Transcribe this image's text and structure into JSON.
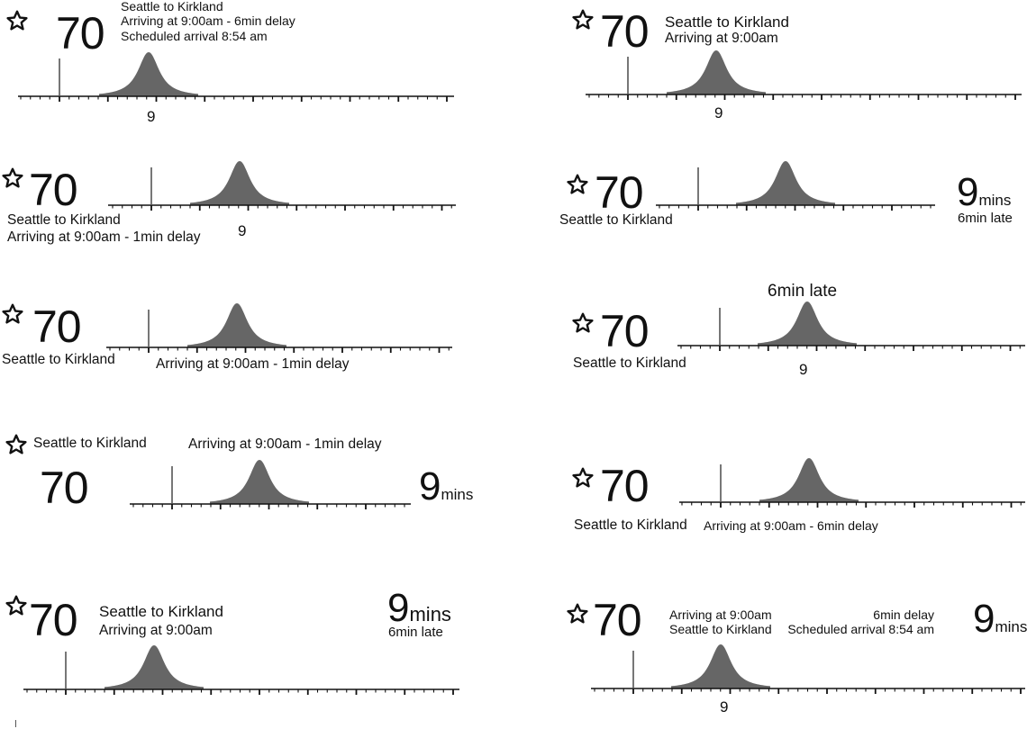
{
  "colors": {
    "curve": "#666666",
    "axis": "#111111",
    "text": "#111111",
    "marker": "#555555"
  },
  "icons": {
    "favorite": "star-outline-icon"
  },
  "variants": [
    {
      "route": "70",
      "lines": [
        "Seattle to Kirkland",
        "Arriving at 9:00am - 6min delay",
        "Scheduled arrival 8:54 am"
      ],
      "tick_label": "9",
      "chart_data": {
        "type": "area",
        "distribution_peak_minutes": 8.9,
        "now_marker_minutes": 8.0,
        "axis_label": "9"
      }
    },
    {
      "route": "70",
      "lines": [
        "Seattle to Kirkland",
        "Arriving at 9:00am"
      ],
      "tick_label": "9",
      "chart_data": {
        "type": "area",
        "distribution_peak_minutes": 8.9,
        "now_marker_minutes": 8.0,
        "axis_label": "9"
      }
    },
    {
      "route": "70",
      "lines": [
        "Seattle to Kirkland",
        "Arriving at 9:00am - 1min delay"
      ],
      "tick_label": "9",
      "chart_data": {
        "type": "area",
        "distribution_peak_minutes": 8.9,
        "now_marker_minutes": 8.0,
        "axis_label": "9"
      }
    },
    {
      "route": "70",
      "lines": [
        "Seattle to Kirkland"
      ],
      "mins_value": "9",
      "mins_unit": "mins",
      "late_text": "6min late",
      "chart_data": {
        "type": "area",
        "distribution_peak_minutes": 9.0,
        "now_marker_minutes": 8.0
      }
    },
    {
      "route": "70",
      "lines": [
        "Seattle to Kirkland",
        "Arriving at 9:00am - 1min delay"
      ],
      "chart_data": {
        "type": "area",
        "distribution_peak_minutes": 9.0,
        "now_marker_minutes": 8.0
      }
    },
    {
      "route": "70",
      "lines": [
        "Seattle to Kirkland"
      ],
      "late_text": "6min late",
      "tick_label": "9",
      "chart_data": {
        "type": "area",
        "distribution_peak_minutes": 9.0,
        "now_marker_minutes": 8.0,
        "axis_label": "9"
      }
    },
    {
      "route": "70",
      "lines": [
        "Seattle to Kirkland",
        "Arriving at 9:00am - 1min delay"
      ],
      "mins_value": "9",
      "mins_unit": "mins",
      "chart_data": {
        "type": "area",
        "distribution_peak_minutes": 9.0,
        "now_marker_minutes": 8.0
      }
    },
    {
      "route": "70",
      "lines": [
        "Seattle to Kirkland",
        "Arriving at 9:00am - 6min delay"
      ],
      "chart_data": {
        "type": "area",
        "distribution_peak_minutes": 9.0,
        "now_marker_minutes": 8.0
      }
    },
    {
      "route": "70",
      "lines": [
        "Seattle to Kirkland",
        "Arriving at 9:00am"
      ],
      "mins_value": "9",
      "mins_unit": "mins",
      "late_text": "6min late",
      "chart_data": {
        "type": "area",
        "distribution_peak_minutes": 9.0,
        "now_marker_minutes": 8.0
      }
    },
    {
      "route": "70",
      "lines": [
        "Arriving at 9:00am",
        "Seattle to Kirkland",
        "6min delay",
        "Scheduled arrival 8:54 am"
      ],
      "mins_value": "9",
      "mins_unit": "mins",
      "tick_label": "9",
      "chart_data": {
        "type": "area",
        "distribution_peak_minutes": 9.0,
        "now_marker_minutes": 8.0,
        "axis_label": "9"
      }
    }
  ]
}
